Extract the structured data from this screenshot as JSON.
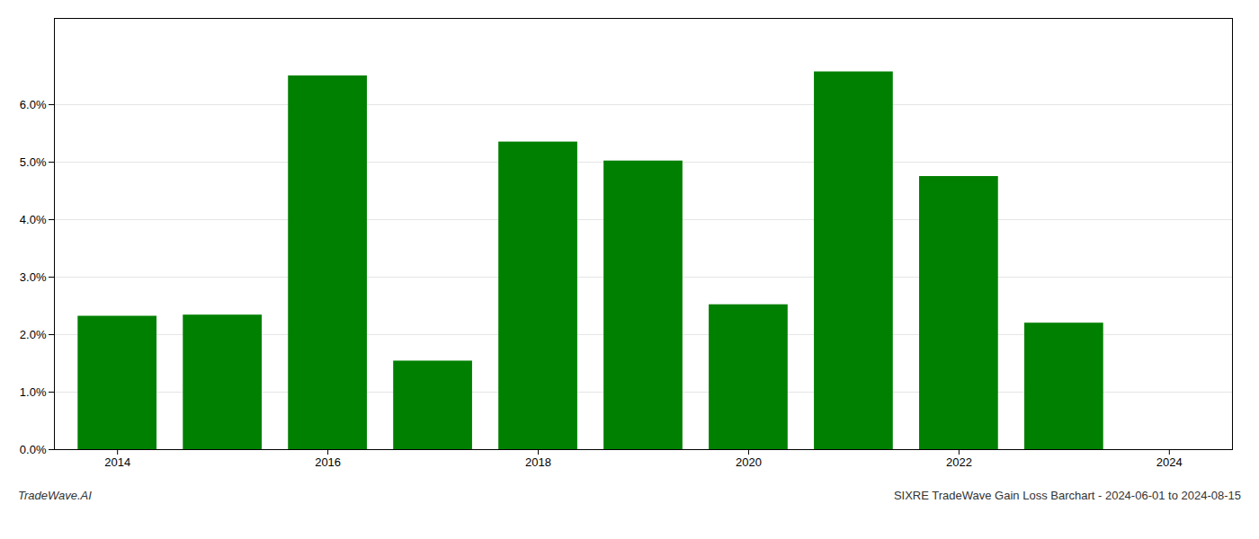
{
  "chart_data": {
    "type": "bar",
    "x": [
      2014,
      2015,
      2016,
      2017,
      2018,
      2019,
      2020,
      2021,
      2022,
      2023
    ],
    "values": [
      0.0232,
      0.0234,
      0.065,
      0.0154,
      0.0535,
      0.0502,
      0.0252,
      0.0657,
      0.0475,
      0.022
    ],
    "color": "#008000",
    "xlim": [
      2013.4,
      2024.6
    ],
    "xticks": [
      2014,
      2016,
      2018,
      2020,
      2022,
      2024
    ],
    "ylim": [
      0,
      0.075
    ],
    "yticks": [
      {
        "value": 0.0,
        "label": "0.0%"
      },
      {
        "value": 0.01,
        "label": "1.0%"
      },
      {
        "value": 0.02,
        "label": "2.0%"
      },
      {
        "value": 0.03,
        "label": "3.0%"
      },
      {
        "value": 0.04,
        "label": "4.0%"
      },
      {
        "value": 0.05,
        "label": "5.0%"
      },
      {
        "value": 0.06,
        "label": "6.0%"
      }
    ],
    "grid": true,
    "annotations": [
      "TradeWave.AI",
      "SIXRE TradeWave Gain Loss Barchart - 2024-06-01 to 2024-08-15"
    ]
  }
}
